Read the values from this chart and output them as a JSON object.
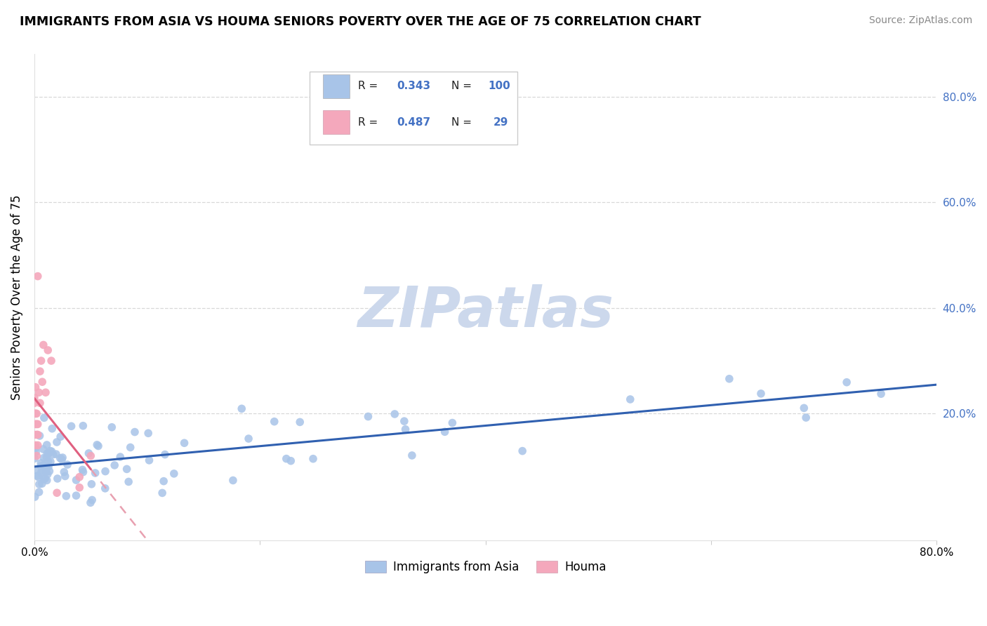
{
  "title": "IMMIGRANTS FROM ASIA VS HOUMA SENIORS POVERTY OVER THE AGE OF 75 CORRELATION CHART",
  "source": "Source: ZipAtlas.com",
  "ylabel": "Seniors Poverty Over the Age of 75",
  "xlim": [
    0.0,
    0.8
  ],
  "ylim": [
    -0.04,
    0.88
  ],
  "blue_R": 0.343,
  "blue_N": 100,
  "pink_R": 0.487,
  "pink_N": 29,
  "blue_color": "#a8c4e8",
  "pink_color": "#f4a8bc",
  "blue_line_color": "#3060b0",
  "pink_line_color": "#e06080",
  "pink_dash_color": "#e8a0b0",
  "watermark_color": "#ccd8ec",
  "grid_color": "#d8d8d8",
  "right_tick_color": "#4472c4",
  "title_fontsize": 12.5,
  "source_fontsize": 10,
  "ytick_vals": [
    0.2,
    0.4,
    0.6,
    0.8
  ],
  "ytick_labels": [
    "20.0%",
    "40.0%",
    "60.0%",
    "80.0%"
  ]
}
